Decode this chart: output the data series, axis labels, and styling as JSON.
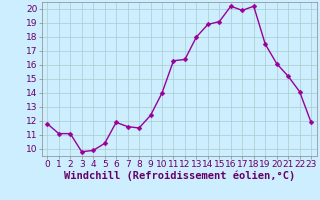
{
  "hours": [
    0,
    1,
    2,
    3,
    4,
    5,
    6,
    7,
    8,
    9,
    10,
    11,
    12,
    13,
    14,
    15,
    16,
    17,
    18,
    19,
    20,
    21,
    22,
    23
  ],
  "values": [
    11.8,
    11.1,
    11.1,
    9.8,
    9.9,
    10.4,
    11.9,
    11.6,
    11.5,
    12.4,
    14.0,
    16.3,
    16.4,
    18.0,
    18.9,
    19.1,
    20.2,
    19.9,
    20.2,
    17.5,
    16.1,
    15.2,
    14.1,
    11.9
  ],
  "line_color": "#990099",
  "marker": "D",
  "marker_size": 2.5,
  "bg_color": "#cceeff",
  "grid_color": "#aacccc",
  "xlabel": "Windchill (Refroidissement éolien,°C)",
  "xlim": [
    -0.5,
    23.5
  ],
  "ylim": [
    9.5,
    20.5
  ],
  "yticks": [
    10,
    11,
    12,
    13,
    14,
    15,
    16,
    17,
    18,
    19,
    20
  ],
  "xticks": [
    0,
    1,
    2,
    3,
    4,
    5,
    6,
    7,
    8,
    9,
    10,
    11,
    12,
    13,
    14,
    15,
    16,
    17,
    18,
    19,
    20,
    21,
    22,
    23
  ],
  "tick_label_size": 6.5,
  "xlabel_size": 7.5,
  "line_width": 1.0
}
